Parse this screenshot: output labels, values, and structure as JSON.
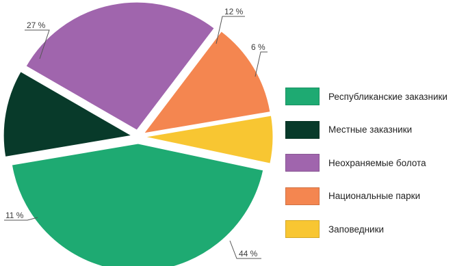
{
  "chart_data": {
    "type": "pie",
    "slices": [
      {
        "label": "Республиканские заказники",
        "value": 44,
        "value_label": "44 %",
        "color": "#1eaa72"
      },
      {
        "label": "Местные заказники",
        "value": 11,
        "value_label": "11 %",
        "color": "#083a2a"
      },
      {
        "label": "Неохраняемые болота",
        "value": 27,
        "value_label": "27 %",
        "color": "#a065ad"
      },
      {
        "label": "Национальные парки",
        "value": 12,
        "value_label": "12 %",
        "color": "#f48650"
      },
      {
        "label": "Заповедники",
        "value": 6,
        "value_label": "6 %",
        "color": "#f8c632"
      }
    ],
    "legend_position": "right",
    "exploded": true
  }
}
